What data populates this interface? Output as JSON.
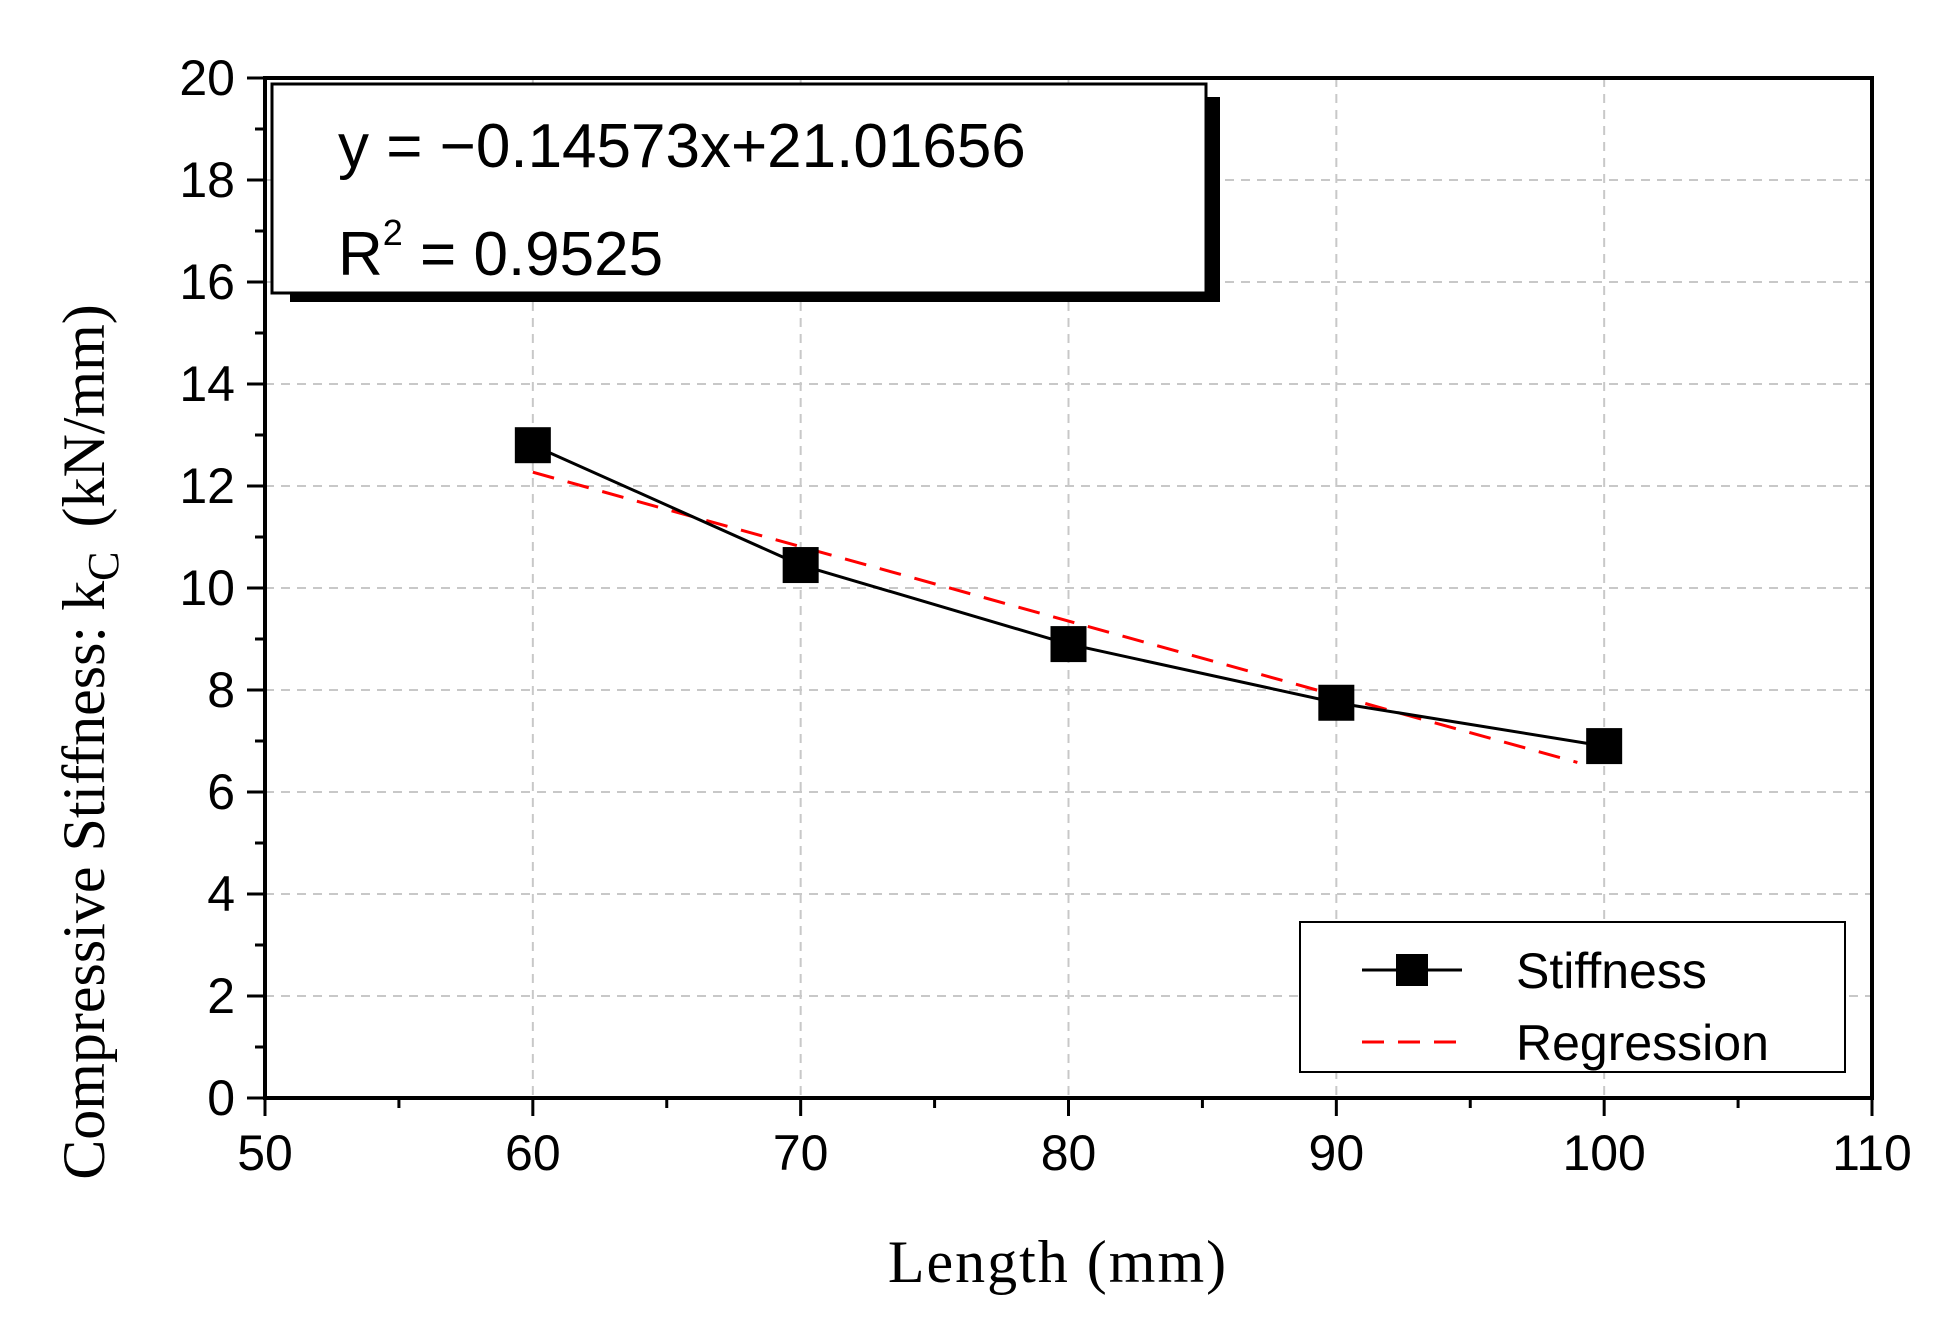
{
  "chart_data": {
    "type": "line",
    "xlabel": "Length (mm)",
    "ylabel": "Compressive Stiffness: k",
    "ylabel_sub": "C",
    "ylabel_unit": "(kN/mm)",
    "xlim": [
      50,
      110
    ],
    "ylim": [
      0,
      20
    ],
    "x_ticks": [
      50,
      60,
      70,
      80,
      90,
      100,
      110
    ],
    "y_ticks": [
      0,
      2,
      4,
      6,
      8,
      10,
      12,
      14,
      16,
      18,
      20
    ],
    "grid": true,
    "legend_position": "bottom-right",
    "series": [
      {
        "name": "Stiffness",
        "style": "solid-line-square-markers",
        "color": "#000000",
        "x": [
          60,
          70,
          80,
          90,
          100
        ],
        "y": [
          12.8,
          10.45,
          8.9,
          7.75,
          6.9
        ]
      },
      {
        "name": "Regression",
        "style": "dashed-line",
        "color": "#ff0000",
        "x": [
          60,
          99
        ],
        "y": [
          12.27,
          6.58
        ]
      }
    ],
    "annotation": {
      "equation": "y = −0.14573x+21.01656",
      "r2_label": "R",
      "r2_sup": "2",
      "r2_value": " = 0.9525"
    }
  }
}
